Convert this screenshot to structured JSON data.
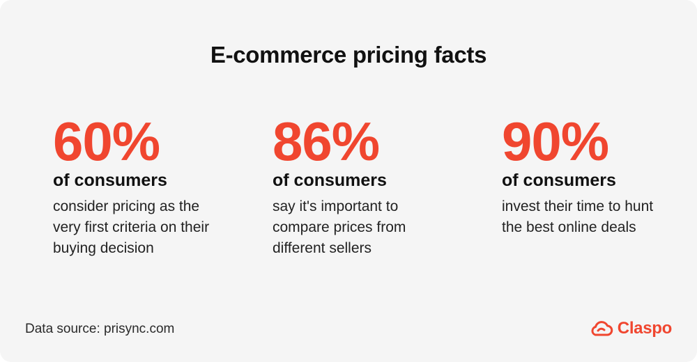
{
  "title": "E-commerce pricing facts",
  "stats": [
    {
      "value": "60%",
      "subject": "of consumers",
      "text": "consider pricing as the very first criteria on their buying decision"
    },
    {
      "value": "86%",
      "subject": "of consumers",
      "text": "say it's important to compare prices from different sellers"
    },
    {
      "value": "90%",
      "subject": "of consumers",
      "text": "invest their time to hunt the best online deals"
    }
  ],
  "footer": {
    "source": "Data source: prisync.com",
    "logo_text": "Claspo",
    "logo_icon": "cloud-icon"
  },
  "colors": {
    "accent": "#f0462f",
    "background": "#f5f5f5",
    "text": "#111111"
  }
}
